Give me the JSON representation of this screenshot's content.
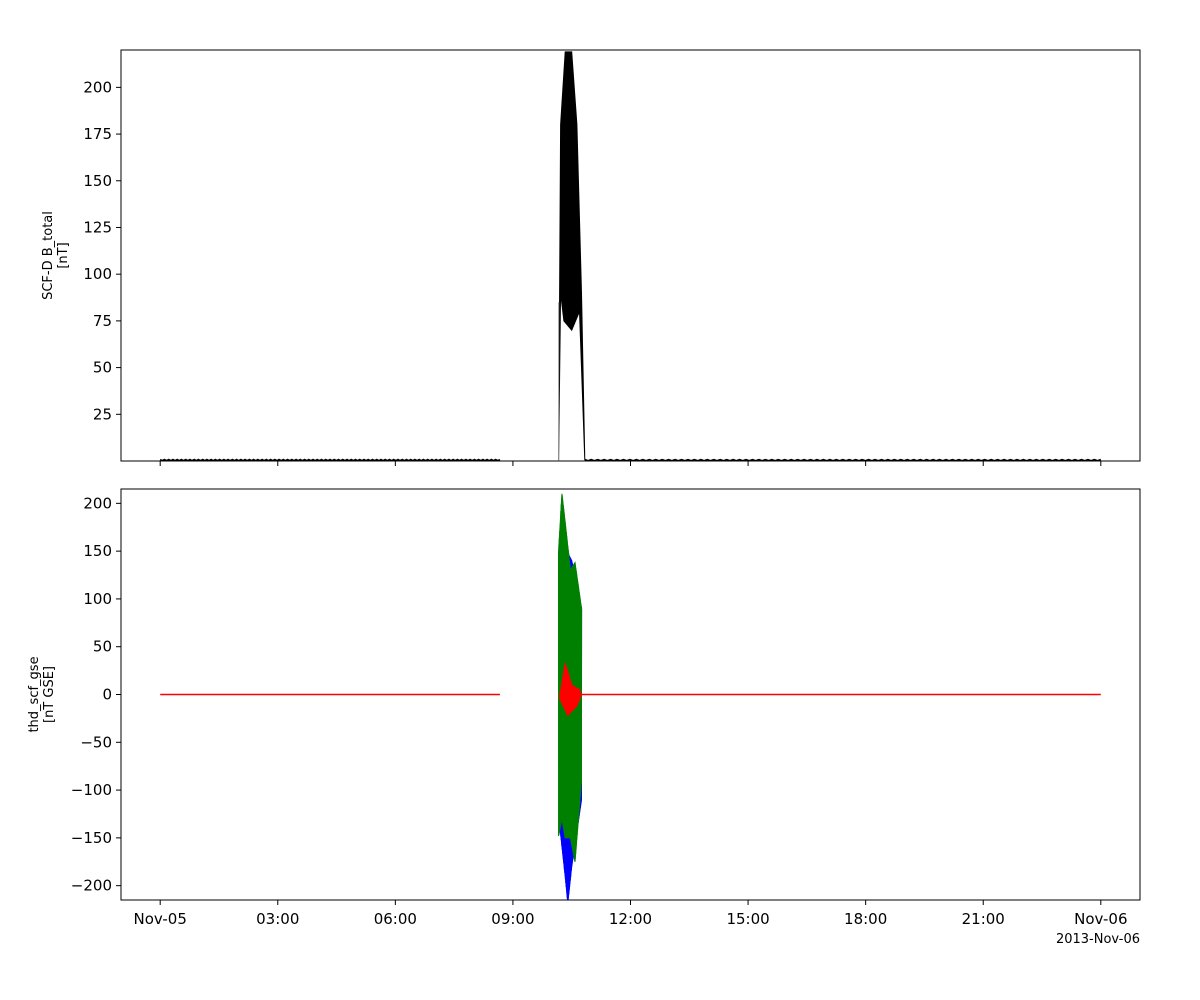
{
  "chart_data": [
    {
      "type": "line",
      "ylabel_line1": "SCF-D B_total",
      "ylabel_line2": "[nT]",
      "xlim": [
        "2013-11-04T23:00",
        "2013-11-06T01:00"
      ],
      "ylim": [
        0,
        220
      ],
      "yticks": [
        25,
        50,
        75,
        100,
        125,
        150,
        175,
        200
      ],
      "series": [
        {
          "color": "#000000",
          "x": [
            "2013-11-05T00:00",
            "2013-11-05T08:40",
            "2013-11-05T10:10",
            "2013-11-05T10:13",
            "2013-11-05T10:20",
            "2013-11-05T10:30",
            "2013-11-05T10:38",
            "2013-11-05T10:45",
            "2013-11-05T10:50",
            "2013-11-05T12:00",
            "2013-11-06T00:00"
          ],
          "values": [
            0.5,
            0.5,
            0.5,
            180,
            219,
            219,
            180,
            90,
            0.5,
            0.5,
            0.5
          ],
          "gap": [
            "2013-11-05T08:40",
            "2013-11-05T10:10"
          ]
        }
      ]
    },
    {
      "type": "line",
      "ylabel_line1": "thd_scf_gse",
      "ylabel_line2": "[nT GSE]",
      "xlim": [
        "2013-11-04T23:00",
        "2013-11-06T01:00"
      ],
      "ylim": [
        -215,
        215
      ],
      "yticks": [
        -200,
        -150,
        -100,
        -50,
        0,
        50,
        100,
        150,
        200
      ],
      "series": [
        {
          "color": "#0000ff",
          "x": [
            "2013-11-05T10:12",
            "2013-11-05T10:20",
            "2013-11-05T10:24",
            "2013-11-05T10:30",
            "2013-11-05T10:45"
          ],
          "values_max": [
            130,
            140,
            148,
            140,
            90
          ],
          "values_min": [
            -140,
            -190,
            -218,
            -180,
            -110
          ]
        },
        {
          "color": "#008000",
          "x": [
            "2013-11-05T10:10",
            "2013-11-05T10:15",
            "2013-11-05T10:20",
            "2013-11-05T10:28",
            "2013-11-05T10:35",
            "2013-11-05T10:45"
          ],
          "values_max": [
            150,
            210,
            180,
            130,
            138,
            90
          ],
          "values_min": [
            -148,
            -130,
            -150,
            -150,
            -175,
            -90
          ]
        },
        {
          "color": "#ff0000",
          "x": [
            "2013-11-05T00:00",
            "2013-11-05T08:40",
            "2013-11-05T10:10",
            "2013-11-05T10:20",
            "2013-11-05T10:45",
            "2013-11-05T11:00",
            "2013-11-06T00:00"
          ],
          "values": [
            0,
            0,
            0,
            0,
            0,
            0,
            0
          ],
          "burst_max": 33,
          "burst_min": -22,
          "gap": [
            "2013-11-05T08:40",
            "2013-11-05T10:10"
          ]
        }
      ]
    }
  ],
  "xaxis": {
    "tick_labels": [
      "Nov-05",
      "03:00",
      "06:00",
      "09:00",
      "12:00",
      "15:00",
      "18:00",
      "21:00",
      "Nov-06"
    ],
    "tick_hours": [
      0,
      3,
      6,
      9,
      12,
      15,
      18,
      21,
      24
    ],
    "date_label": "2013-Nov-06"
  }
}
